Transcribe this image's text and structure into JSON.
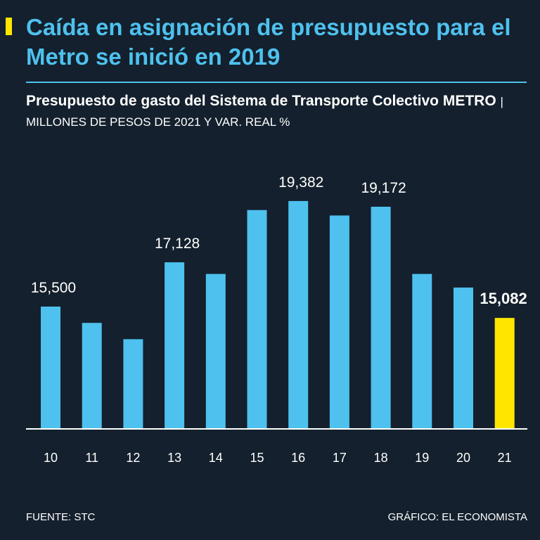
{
  "header": {
    "headline": "Caída en asignación de presupuesto para el Metro se inició en 2019",
    "subtitle_bold": "Presupuesto de gasto del Sistema de Transporte Colectivo METRO",
    "subtitle_units": "| MILLONES DE PESOS DE 2021 Y VAR. REAL %"
  },
  "chart_data": {
    "type": "bar",
    "title": "Presupuesto de gasto del Sistema de Transporte Colectivo METRO",
    "ylabel": "Millones de pesos de 2021",
    "xlabel": "",
    "ylim": [
      11000,
      20000
    ],
    "categories": [
      "10",
      "11",
      "12",
      "13",
      "14",
      "15",
      "16",
      "17",
      "18",
      "19",
      "20",
      "21"
    ],
    "values": [
      15500,
      14900,
      14300,
      17128,
      16700,
      19050,
      19382,
      18850,
      19172,
      16700,
      16200,
      15082
    ],
    "data_labels": [
      {
        "index": 0,
        "text": "15,500"
      },
      {
        "index": 3,
        "text": "17,128"
      },
      {
        "index": 6,
        "text": "19,382"
      },
      {
        "index": 8,
        "text": "19,172"
      },
      {
        "index": 11,
        "text": "15,082",
        "highlight": true
      }
    ],
    "colors": {
      "bar": "#4ec1ee",
      "highlight": "#ffe600",
      "axis": "#ffffff",
      "label": "#ffffff"
    }
  },
  "footer": {
    "source": "FUENTE: STC",
    "credit": "GRÁFICO: EL ECONOMISTA"
  }
}
